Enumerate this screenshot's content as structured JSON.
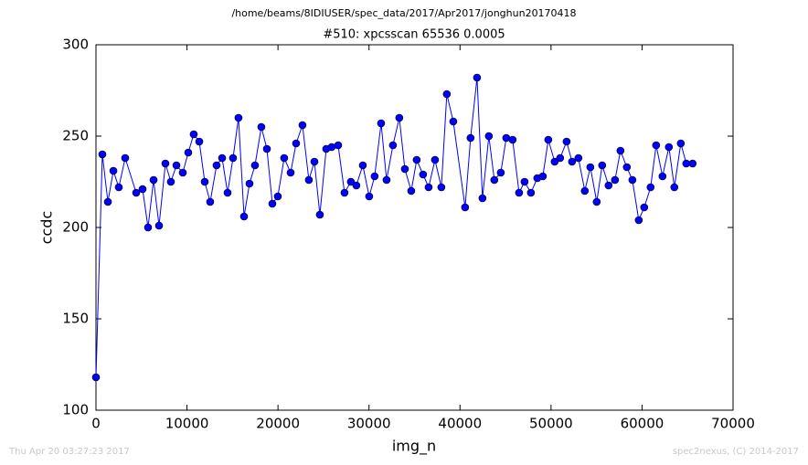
{
  "chart_data": {
    "type": "line",
    "title": "/home/beams/8IDIUSER/spec_data/2017/Apr2017/jonghun20170418",
    "subtitle": "#510: xpcsscan 65536 0.0005",
    "x_label": "img_n",
    "y_label": "ccdc",
    "xlim": [
      0,
      70000
    ],
    "xticks": [
      0,
      10000,
      20000,
      30000,
      40000,
      50000,
      60000,
      70000
    ],
    "ylim": [
      100,
      300
    ],
    "yticks": [
      100,
      150,
      200,
      250,
      300
    ],
    "grid": false,
    "series": [
      {
        "name": "ccdc",
        "color": "#0000ff",
        "x": [
          0,
          700,
          1310,
          1910,
          2510,
          3210,
          4420,
          5120,
          5720,
          6330,
          6930,
          7630,
          8230,
          8840,
          9540,
          10140,
          10740,
          11350,
          11950,
          12550,
          13250,
          13860,
          14460,
          15060,
          15660,
          16270,
          16870,
          17470,
          18170,
          18780,
          19380,
          19980,
          20680,
          21390,
          21990,
          22690,
          23390,
          24000,
          24600,
          25300,
          25900,
          26610,
          27310,
          28010,
          28610,
          29320,
          30020,
          30620,
          31330,
          31930,
          32630,
          33330,
          33940,
          34640,
          35240,
          35940,
          36550,
          37250,
          37950,
          38550,
          39260,
          40560,
          41160,
          41870,
          42470,
          43170,
          43770,
          44480,
          45080,
          45780,
          46490,
          47090,
          47790,
          48490,
          49100,
          49700,
          50400,
          51000,
          51710,
          52310,
          53010,
          53710,
          54320,
          55020,
          55620,
          56320,
          57030,
          57630,
          58330,
          58940,
          59640,
          60240,
          60940,
          61550,
          62250,
          62950,
          63550,
          64260,
          64860,
          65560
        ],
        "values": [
          118,
          240,
          214,
          231,
          222,
          238,
          219,
          221,
          200,
          226,
          201,
          235,
          225,
          234,
          230,
          241,
          251,
          247,
          225,
          214,
          234,
          238,
          219,
          238,
          260,
          206,
          224,
          234,
          255,
          243,
          213,
          217,
          238,
          230,
          246,
          256,
          226,
          236,
          207,
          243,
          244,
          245,
          219,
          225,
          223,
          234,
          217,
          228,
          257,
          226,
          245,
          260,
          232,
          220,
          237,
          229,
          222,
          237,
          222,
          273,
          258,
          211,
          249,
          282,
          216,
          250,
          226,
          230,
          249,
          248,
          219,
          225,
          219,
          227,
          228,
          248,
          236,
          238,
          247,
          236,
          238,
          220,
          233,
          214,
          234,
          223,
          226,
          242,
          233,
          226,
          204,
          211,
          222,
          245,
          228,
          244,
          222,
          246,
          235,
          235
        ]
      }
    ]
  },
  "footer_left": "Thu Apr 20 03:27:23 2017",
  "footer_right": "spec2nexus, (C) 2014-2017"
}
